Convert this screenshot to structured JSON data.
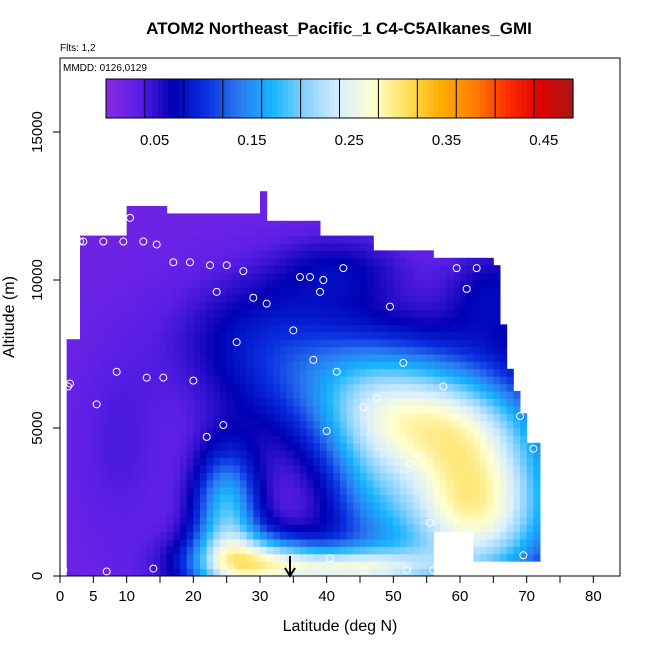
{
  "chart_data": {
    "type": "heatmap",
    "title": "ATOM2 Northeast_Pacific_1 C4-C5Alkanes_GMI",
    "flights_note": "Flts: 1,2",
    "dates_note": "MMDD: 0126,0129",
    "xlabel": "Latitude (deg N)",
    "ylabel": "Altitude (m)",
    "xlim": [
      0,
      84
    ],
    "ylim": [
      0,
      17500
    ],
    "x_ticks": [
      0,
      5,
      10,
      20,
      30,
      40,
      50,
      60,
      70,
      80
    ],
    "y_ticks": [
      0,
      5000,
      10000,
      15000
    ],
    "colorbar": {
      "range": [
        0,
        0.48
      ],
      "tick_values": [
        0.05,
        0.15,
        0.25,
        0.35,
        0.45
      ],
      "tick_labels": [
        "0.05",
        "0.15",
        "0.25",
        "0.35",
        "0.45"
      ],
      "colors": [
        "#8a2be2",
        "#5a1ee6",
        "#0000b4",
        "#0a2fe0",
        "#2a7bf0",
        "#18b4ff",
        "#8ad2ff",
        "#d8eeff",
        "#ffffd0",
        "#ffe060",
        "#ffb000",
        "#ff8000",
        "#ff3000",
        "#e00000",
        "#a81818"
      ]
    },
    "surface_marker_latitude": 34.5,
    "observations": [
      {
        "lat": 0.5,
        "alt": 200
      },
      {
        "lat": 7,
        "alt": 150
      },
      {
        "lat": 14,
        "alt": 250
      },
      {
        "lat": 25.5,
        "alt": 250
      },
      {
        "lat": 40.5,
        "alt": 600
      },
      {
        "lat": 45.5,
        "alt": 200
      },
      {
        "lat": 52,
        "alt": 200
      },
      {
        "lat": 56,
        "alt": 200
      },
      {
        "lat": 69.5,
        "alt": 700
      },
      {
        "lat": 55.5,
        "alt": 1800
      },
      {
        "lat": 52.5,
        "alt": 3800
      },
      {
        "lat": 54.5,
        "alt": 4000
      },
      {
        "lat": 71,
        "alt": 4300
      },
      {
        "lat": 22,
        "alt": 4700
      },
      {
        "lat": 24.5,
        "alt": 5100
      },
      {
        "lat": 40,
        "alt": 4900
      },
      {
        "lat": 5.5,
        "alt": 5800
      },
      {
        "lat": 45.5,
        "alt": 5700
      },
      {
        "lat": 47.5,
        "alt": 6000
      },
      {
        "lat": 69,
        "alt": 5400
      },
      {
        "lat": 1.5,
        "alt": 6500
      },
      {
        "lat": 1.2,
        "alt": 6400
      },
      {
        "lat": 8.5,
        "alt": 6900
      },
      {
        "lat": 13,
        "alt": 6700
      },
      {
        "lat": 15.5,
        "alt": 6700
      },
      {
        "lat": 20,
        "alt": 6600
      },
      {
        "lat": 41.5,
        "alt": 6900
      },
      {
        "lat": 51.5,
        "alt": 7200
      },
      {
        "lat": 57.5,
        "alt": 6400
      },
      {
        "lat": 38,
        "alt": 7300
      },
      {
        "lat": 26.5,
        "alt": 7900
      },
      {
        "lat": 35,
        "alt": 8300
      },
      {
        "lat": 29,
        "alt": 9400
      },
      {
        "lat": 31,
        "alt": 9200
      },
      {
        "lat": 49.5,
        "alt": 9100
      },
      {
        "lat": 23.5,
        "alt": 9600
      },
      {
        "lat": 39,
        "alt": 9600
      },
      {
        "lat": 61,
        "alt": 9700
      },
      {
        "lat": 36,
        "alt": 10100
      },
      {
        "lat": 37.5,
        "alt": 10100
      },
      {
        "lat": 39.5,
        "alt": 10000
      },
      {
        "lat": 42.5,
        "alt": 10400
      },
      {
        "lat": 59.5,
        "alt": 10400
      },
      {
        "lat": 62.5,
        "alt": 10400
      },
      {
        "lat": 17,
        "alt": 10600
      },
      {
        "lat": 19.5,
        "alt": 10600
      },
      {
        "lat": 22.5,
        "alt": 10500
      },
      {
        "lat": 25,
        "alt": 10500
      },
      {
        "lat": 27.5,
        "alt": 10300
      },
      {
        "lat": 65.5,
        "alt": 11000
      },
      {
        "lat": 3,
        "alt": 11300
      },
      {
        "lat": 3.5,
        "alt": 11300
      },
      {
        "lat": 6.5,
        "alt": 11300
      },
      {
        "lat": 9.5,
        "alt": 11300
      },
      {
        "lat": 12.5,
        "alt": 11300
      },
      {
        "lat": 14.5,
        "alt": 11200
      },
      {
        "lat": 10.5,
        "alt": 12100
      },
      {
        "lat": 17.5,
        "alt": 12400
      }
    ]
  }
}
